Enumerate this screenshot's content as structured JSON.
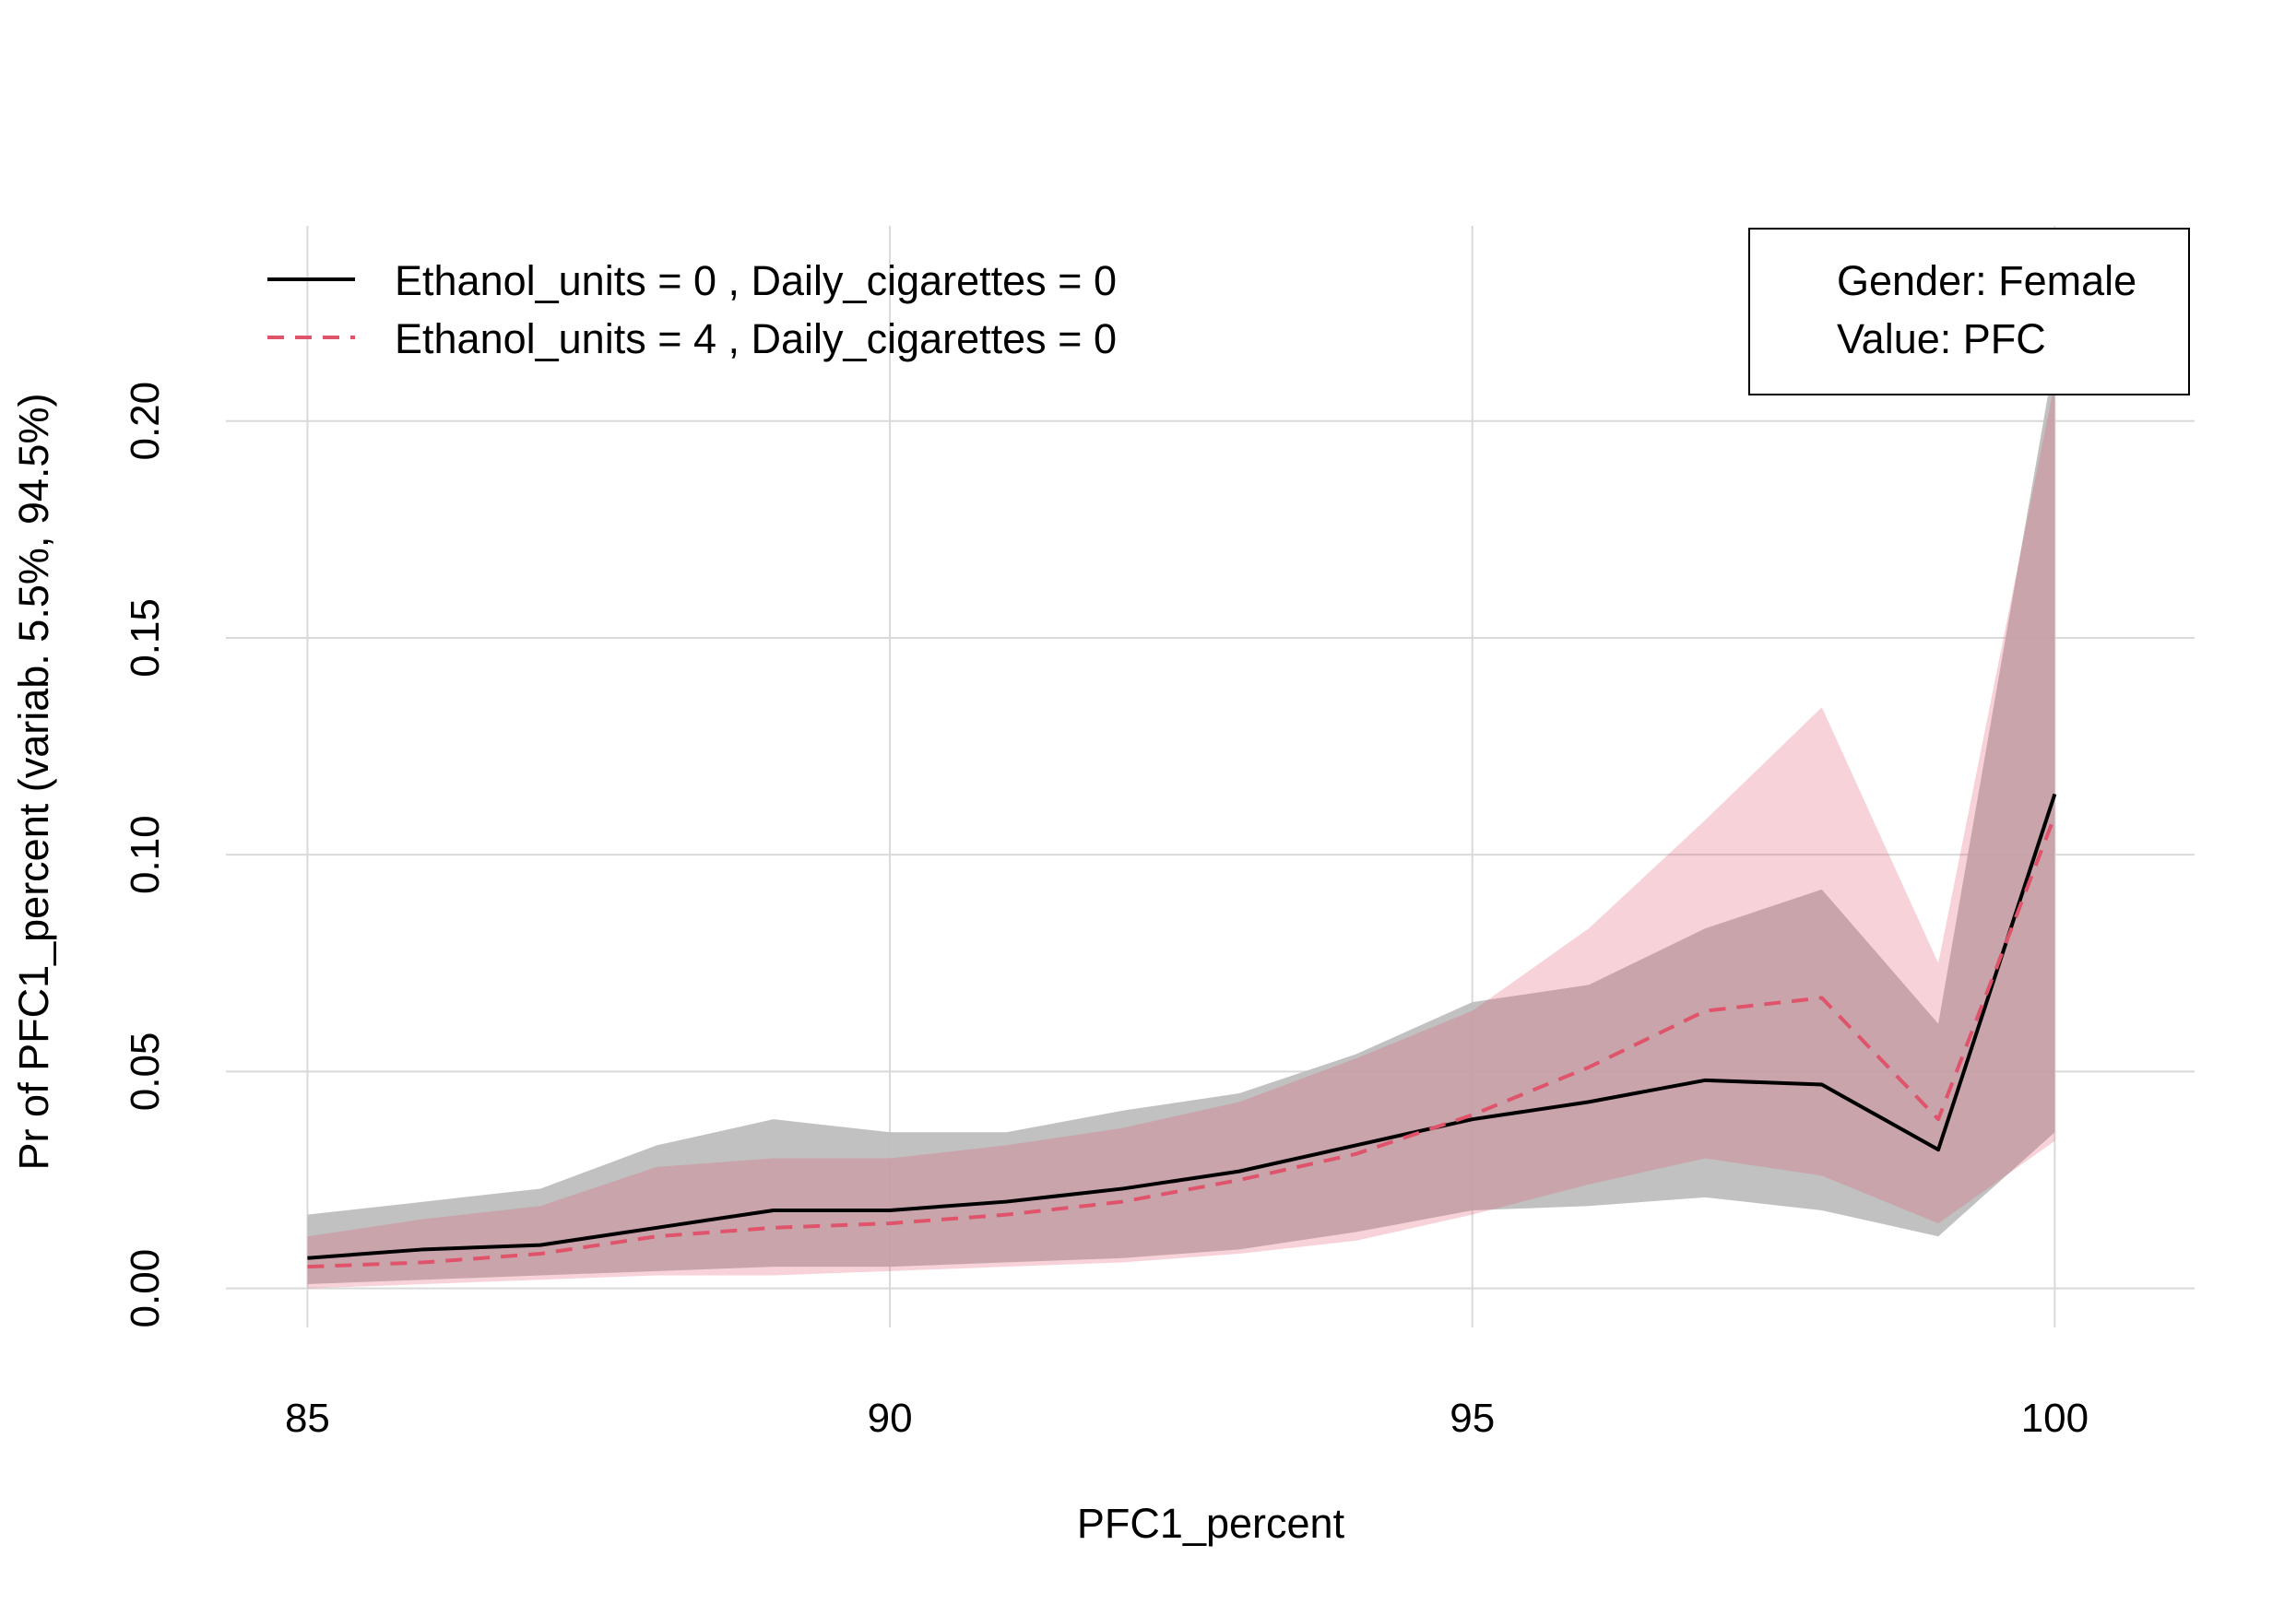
{
  "chart_data": {
    "type": "line",
    "title": "",
    "xlabel": "PFC1_percent",
    "ylabel": "Pr of PFC1_percent  (variab. 5.5%, 94.5%)",
    "xlim": [
      84.3,
      101.2
    ],
    "ylim": [
      -0.009,
      0.245
    ],
    "x_ticks": [
      85,
      90,
      95,
      100
    ],
    "y_ticks": [
      0.0,
      0.05,
      0.1,
      0.15,
      0.2
    ],
    "x_tick_labels": [
      "85",
      "90",
      "95",
      "100"
    ],
    "y_tick_labels": [
      "0.00",
      "0.05",
      "0.10",
      "0.15",
      "0.20"
    ],
    "grid": true,
    "legend": {
      "position": "top-left",
      "entries": [
        "Ethanol_units =  0 , Daily_cigarettes =  0",
        "Ethanol_units =  4 , Daily_cigarettes =  0"
      ]
    },
    "info_box": {
      "position": "top-right",
      "lines": [
        "Gender: Female",
        "Value: PFC"
      ]
    },
    "x": [
      85,
      86,
      87,
      88,
      89,
      90,
      91,
      92,
      93,
      94,
      95,
      96,
      97,
      98,
      99,
      100
    ],
    "series": [
      {
        "name": "Ethanol_units =  0 , Daily_cigarettes =  0",
        "color": "#000000",
        "band_color": "#bebebe",
        "dash": "solid",
        "values": [
          0.007,
          0.009,
          0.01,
          0.014,
          0.018,
          0.018,
          0.02,
          0.023,
          0.027,
          0.033,
          0.039,
          0.043,
          0.048,
          0.047,
          0.032,
          0.114
        ],
        "lower": [
          0.001,
          0.002,
          0.003,
          0.004,
          0.005,
          0.005,
          0.006,
          0.007,
          0.009,
          0.013,
          0.018,
          0.019,
          0.021,
          0.018,
          0.012,
          0.036
        ],
        "upper": [
          0.017,
          0.02,
          0.023,
          0.033,
          0.039,
          0.036,
          0.036,
          0.041,
          0.045,
          0.054,
          0.066,
          0.07,
          0.083,
          0.092,
          0.061,
          0.215
        ]
      },
      {
        "name": "Ethanol_units =  4 , Daily_cigarettes =  0",
        "color": "#df536b",
        "band_color": "#df536b",
        "dash": "dashed",
        "values": [
          0.005,
          0.006,
          0.008,
          0.012,
          0.014,
          0.015,
          0.017,
          0.02,
          0.025,
          0.031,
          0.04,
          0.051,
          0.064,
          0.067,
          0.039,
          0.109
        ],
        "lower": [
          0.0,
          0.001,
          0.002,
          0.003,
          0.003,
          0.004,
          0.005,
          0.006,
          0.008,
          0.011,
          0.017,
          0.024,
          0.03,
          0.026,
          0.015,
          0.034
        ],
        "upper": [
          0.012,
          0.016,
          0.019,
          0.028,
          0.03,
          0.03,
          0.033,
          0.037,
          0.043,
          0.053,
          0.064,
          0.083,
          0.108,
          0.134,
          0.075,
          0.209
        ]
      }
    ]
  }
}
